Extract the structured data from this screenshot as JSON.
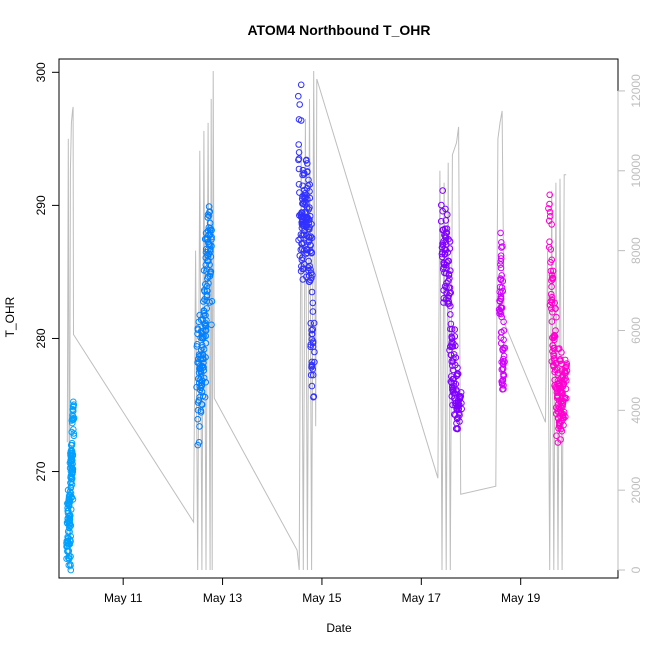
{
  "chart_data": {
    "type": "scatter",
    "title": "ATOM4 Northbound T_OHR",
    "xlabel": "Date",
    "ylabel": "T_OHR",
    "x_axis": {
      "kind": "date",
      "range": [
        "2023-05-09T17:00",
        "2023-05-20T23:00"
      ],
      "ticks": [
        "May 11",
        "May 13",
        "May 15",
        "May 17",
        "May 19"
      ]
    },
    "y_left": {
      "range": [
        262,
        301
      ],
      "ticks": [
        270,
        280,
        290,
        300
      ]
    },
    "y_right": {
      "range": [
        -200,
        12800
      ],
      "ticks": [
        0,
        2000,
        4000,
        6000,
        8000,
        10000,
        12000
      ],
      "color": "#bebebe"
    },
    "colors": [
      "#00a0ff",
      "#0080ff",
      "#3030ff",
      "#8000ff",
      "#d000ff",
      "#ff00d0"
    ],
    "scatter_groups": [
      {
        "color": "#00a0ff",
        "t_start": "2023-05-09T21:00",
        "t_end": "2023-05-09T23:50",
        "points": [
          [
            0,
            264.0
          ],
          [
            0.1,
            264.5
          ],
          [
            0.15,
            266.0
          ],
          [
            0.2,
            267.5
          ],
          [
            0.25,
            268.0
          ],
          [
            0.3,
            265.0
          ],
          [
            0.35,
            263.0
          ],
          [
            0.4,
            265.5
          ],
          [
            0.5,
            267.0
          ],
          [
            0.55,
            268.5
          ],
          [
            0.6,
            269.5
          ],
          [
            0.65,
            270.5
          ],
          [
            0.7,
            271.5
          ],
          [
            0.75,
            270.0
          ],
          [
            0.8,
            272.0
          ],
          [
            0.85,
            268.5
          ],
          [
            0.9,
            273.5
          ],
          [
            0.95,
            274.5
          ],
          [
            1.0,
            274.5
          ]
        ]
      },
      {
        "color": "#0080ff",
        "t_start": "2023-05-12T12:00",
        "t_end": "2023-05-12T18:30",
        "points": [
          [
            0,
            277.0
          ],
          [
            0.05,
            282.0
          ],
          [
            0.1,
            272.0
          ],
          [
            0.15,
            280.0
          ],
          [
            0.2,
            276.0
          ],
          [
            0.25,
            279.0
          ],
          [
            0.3,
            274.0
          ],
          [
            0.35,
            281.0
          ],
          [
            0.4,
            277.5
          ],
          [
            0.45,
            285.0
          ],
          [
            0.5,
            276.0
          ],
          [
            0.55,
            282.5
          ],
          [
            0.6,
            280.0
          ],
          [
            0.65,
            286.0
          ],
          [
            0.7,
            288.0
          ],
          [
            0.75,
            283.0
          ],
          [
            0.8,
            287.0
          ],
          [
            0.85,
            290.0
          ],
          [
            0.9,
            284.5
          ],
          [
            0.95,
            289.0
          ],
          [
            1.0,
            281.5
          ]
        ]
      },
      {
        "color": "#3030ff",
        "t_start": "2023-05-14T13:00",
        "t_end": "2023-05-14T20:00",
        "points": [
          [
            0,
            288.0
          ],
          [
            0.05,
            299.5
          ],
          [
            0.1,
            286.0
          ],
          [
            0.15,
            292.0
          ],
          [
            0.2,
            284.0
          ],
          [
            0.25,
            290.0
          ],
          [
            0.3,
            287.0
          ],
          [
            0.35,
            293.0
          ],
          [
            0.4,
            285.0
          ],
          [
            0.45,
            290.5
          ],
          [
            0.5,
            288.5
          ],
          [
            0.55,
            294.0
          ],
          [
            0.6,
            286.5
          ],
          [
            0.65,
            291.0
          ],
          [
            0.7,
            287.5
          ],
          [
            0.75,
            283.5
          ],
          [
            0.8,
            289.0
          ],
          [
            0.85,
            281.0
          ],
          [
            0.9,
            279.0
          ],
          [
            0.95,
            276.0
          ],
          [
            1.0,
            282.0
          ]
        ]
      },
      {
        "color": "#8000ff",
        "t_start": "2023-05-17T10:00",
        "t_end": "2023-05-17T19:00",
        "points": [
          [
            0,
            290.5
          ],
          [
            0.05,
            285.0
          ],
          [
            0.1,
            288.0
          ],
          [
            0.15,
            283.0
          ],
          [
            0.2,
            286.5
          ],
          [
            0.25,
            289.5
          ],
          [
            0.3,
            284.5
          ],
          [
            0.35,
            282.0
          ],
          [
            0.4,
            287.5
          ],
          [
            0.45,
            279.0
          ],
          [
            0.5,
            281.0
          ],
          [
            0.55,
            277.5
          ],
          [
            0.6,
            275.0
          ],
          [
            0.65,
            280.0
          ],
          [
            0.7,
            276.5
          ],
          [
            0.75,
            274.5
          ],
          [
            0.8,
            278.0
          ],
          [
            0.85,
            272.5
          ],
          [
            0.9,
            276.0
          ],
          [
            0.95,
            274.0
          ],
          [
            1.0,
            276.5
          ]
        ]
      },
      {
        "color": "#d000ff",
        "t_start": "2023-05-18T14:00",
        "t_end": "2023-05-18T16:00",
        "points": [
          [
            0,
            283.0
          ],
          [
            0.15,
            282.0
          ],
          [
            0.3,
            287.5
          ],
          [
            0.45,
            284.0
          ],
          [
            0.55,
            281.0
          ],
          [
            0.65,
            279.0
          ],
          [
            0.75,
            277.0
          ],
          [
            0.85,
            276.5
          ],
          [
            1.0,
            280.5
          ]
        ]
      },
      {
        "color": "#ff00d0",
        "t_start": "2023-05-19T14:00",
        "t_end": "2023-05-19T22:00",
        "points": [
          [
            0,
            290.5
          ],
          [
            0.05,
            287.0
          ],
          [
            0.1,
            282.0
          ],
          [
            0.15,
            285.5
          ],
          [
            0.2,
            278.0
          ],
          [
            0.25,
            280.5
          ],
          [
            0.3,
            276.0
          ],
          [
            0.35,
            283.0
          ],
          [
            0.4,
            274.0
          ],
          [
            0.45,
            278.5
          ],
          [
            0.5,
            272.0
          ],
          [
            0.55,
            276.5
          ],
          [
            0.6,
            274.5
          ],
          [
            0.65,
            279.0
          ],
          [
            0.7,
            275.5
          ],
          [
            0.75,
            273.0
          ],
          [
            0.8,
            277.5
          ],
          [
            0.85,
            276.0
          ],
          [
            0.9,
            274.0
          ],
          [
            0.95,
            278.0
          ],
          [
            1.0,
            277.0
          ]
        ]
      }
    ],
    "line_series": {
      "color": "#bebebe",
      "axis": "right",
      "points": [
        [
          "2023-05-09T21:00",
          3200
        ],
        [
          "2023-05-09T21:30",
          10800
        ],
        [
          "2023-05-09T22:00",
          0
        ],
        [
          "2023-05-09T22:30",
          10000
        ],
        [
          "2023-05-09T23:00",
          11200
        ],
        [
          "2023-05-09T23:30",
          11500
        ],
        [
          "2023-05-09T23:50",
          11600
        ],
        [
          "2023-05-10T00:00",
          5900
        ],
        [
          "2023-05-12T10:00",
          1200
        ],
        [
          "2023-05-12T11:00",
          8000
        ],
        [
          "2023-05-12T12:00",
          0
        ],
        [
          "2023-05-12T13:00",
          10500
        ],
        [
          "2023-05-12T14:00",
          0
        ],
        [
          "2023-05-12T15:00",
          11000
        ],
        [
          "2023-05-12T16:00",
          0
        ],
        [
          "2023-05-12T17:00",
          11200
        ],
        [
          "2023-05-12T18:00",
          0
        ],
        [
          "2023-05-12T18:30",
          11800
        ],
        [
          "2023-05-12T19:00",
          0
        ],
        [
          "2023-05-12T19:30",
          12500
        ],
        [
          "2023-05-12T20:00",
          4300
        ],
        [
          "2023-05-14T12:00",
          500
        ],
        [
          "2023-05-14T13:00",
          0
        ],
        [
          "2023-05-14T14:00",
          10600
        ],
        [
          "2023-05-14T15:00",
          0
        ],
        [
          "2023-05-14T16:00",
          11300
        ],
        [
          "2023-05-14T17:00",
          0
        ],
        [
          "2023-05-14T18:00",
          11800
        ],
        [
          "2023-05-14T19:00",
          0
        ],
        [
          "2023-05-14T20:00",
          12500
        ],
        [
          "2023-05-14T21:00",
          3600
        ],
        [
          "2023-05-14T21:30",
          12300
        ],
        [
          "2023-05-17T08:00",
          2300
        ],
        [
          "2023-05-17T09:00",
          10000
        ],
        [
          "2023-05-17T10:00",
          0
        ],
        [
          "2023-05-17T11:00",
          9700
        ],
        [
          "2023-05-17T12:00",
          0
        ],
        [
          "2023-05-17T13:00",
          10200
        ],
        [
          "2023-05-17T14:00",
          0
        ],
        [
          "2023-05-17T15:00",
          10400
        ],
        [
          "2023-05-17T17:00",
          10700
        ],
        [
          "2023-05-17T18:00",
          11100
        ],
        [
          "2023-05-17T19:00",
          1900
        ],
        [
          "2023-05-18T12:00",
          2100
        ],
        [
          "2023-05-18T13:00",
          10800
        ],
        [
          "2023-05-18T14:00",
          11200
        ],
        [
          "2023-05-18T15:00",
          11500
        ],
        [
          "2023-05-18T16:00",
          6200
        ],
        [
          "2023-05-19T12:00",
          3700
        ],
        [
          "2023-05-19T13:00",
          8000
        ],
        [
          "2023-05-19T14:00",
          0
        ],
        [
          "2023-05-19T15:00",
          9500
        ],
        [
          "2023-05-19T16:00",
          0
        ],
        [
          "2023-05-19T17:00",
          9700
        ],
        [
          "2023-05-19T18:00",
          0
        ],
        [
          "2023-05-19T19:00",
          9800
        ],
        [
          "2023-05-19T20:00",
          0
        ],
        [
          "2023-05-19T21:00",
          9900
        ],
        [
          "2023-05-19T22:00",
          9900
        ]
      ]
    },
    "grid": false,
    "legend": "none"
  }
}
